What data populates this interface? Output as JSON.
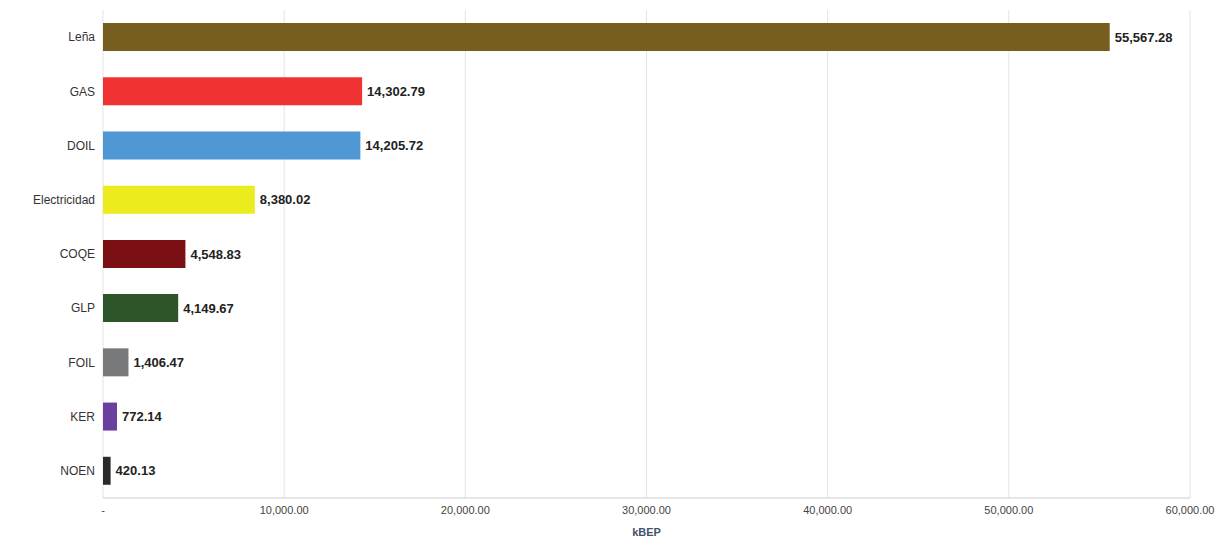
{
  "chart_data": {
    "type": "bar",
    "orientation": "horizontal",
    "x_label": "kBEP",
    "categories": [
      "Leña",
      "GAS",
      "DOIL",
      "Electricidad",
      "COQE",
      "GLP",
      "FOIL",
      "KER",
      "NOEN"
    ],
    "values": [
      55567.28,
      14302.79,
      14205.72,
      8380.02,
      4548.83,
      4149.67,
      1406.47,
      772.14,
      420.13
    ],
    "value_labels": [
      "55,567.28",
      "14,302.79",
      "14,205.72",
      "8,380.02",
      "4,548.83",
      "4,149.67",
      "1,406.47",
      "772.14",
      "420.13"
    ],
    "colors": [
      "#775e1e",
      "#f03232",
      "#4f98d4",
      "#ebeb1e",
      "#7a1014",
      "#2e5429",
      "#77797b",
      "#6b3fa0",
      "#2b2b2b"
    ],
    "xlim": [
      0,
      60000
    ],
    "xticks": [
      {
        "value": 0,
        "label": "-"
      },
      {
        "value": 10000,
        "label": "10,000.00"
      },
      {
        "value": 20000,
        "label": "20,000.00"
      },
      {
        "value": 30000,
        "label": "30,000.00"
      },
      {
        "value": 40000,
        "label": "40,000.00"
      },
      {
        "value": 50000,
        "label": "50,000.00"
      },
      {
        "value": 60000,
        "label": "60,000.00"
      }
    ],
    "grid": true,
    "data_labels": true
  }
}
